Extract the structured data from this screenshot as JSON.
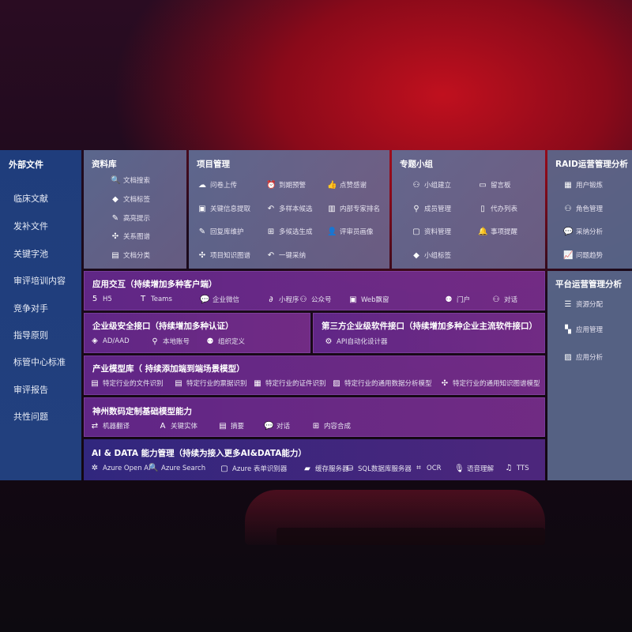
{
  "sidebar": {
    "title": "外部文件",
    "items": [
      "临床文献",
      "发补文件",
      "关键字池",
      "审评培训内容",
      "竞争对手",
      "指导原则",
      "标管中心标准",
      "审评报告",
      "共性问题"
    ]
  },
  "library": {
    "title": "资料库",
    "items": [
      {
        "label": "文档搜索",
        "icon": "doc-search"
      },
      {
        "label": "文档标签",
        "icon": "tag"
      },
      {
        "label": "高亮提示",
        "icon": "pen"
      },
      {
        "label": "关系图谱",
        "icon": "graph"
      },
      {
        "label": "文档分类",
        "icon": "doc-category"
      }
    ]
  },
  "project": {
    "title": "项目管理",
    "items": [
      {
        "label": "问卷上传",
        "icon": "cloud-upload"
      },
      {
        "label": "到期预警",
        "icon": "alarm"
      },
      {
        "label": "点赞感谢",
        "icon": "thumbs-up"
      },
      {
        "label": "关键信息提取",
        "icon": "window"
      },
      {
        "label": "多样本候选",
        "icon": "reply"
      },
      {
        "label": "内部专家排名",
        "icon": "ranking"
      },
      {
        "label": "回复库维护",
        "icon": "pen"
      },
      {
        "label": "多候选生成",
        "icon": "puzzle"
      },
      {
        "label": "评审员画像",
        "icon": "user"
      },
      {
        "label": "项目知识图谱",
        "icon": "graph"
      },
      {
        "label": "一键采纳",
        "icon": "reply"
      }
    ]
  },
  "group": {
    "title": "专题小组",
    "items": [
      {
        "label": "小组建立",
        "icon": "users"
      },
      {
        "label": "留言板",
        "icon": "bbs"
      },
      {
        "label": "成员管理",
        "icon": "user-add"
      },
      {
        "label": "代办列表",
        "icon": "clipboard"
      },
      {
        "label": "资料管理",
        "icon": "folder"
      },
      {
        "label": "事项提醒",
        "icon": "bell"
      },
      {
        "label": "小组标签",
        "icon": "tag"
      }
    ]
  },
  "raid": {
    "title": "RAID运营管理分析",
    "items": [
      {
        "label": "用户锻炼",
        "icon": "id-card"
      },
      {
        "label": "角色管理",
        "icon": "users"
      },
      {
        "label": "采纳分析",
        "icon": "qa"
      },
      {
        "label": "问题趋势",
        "icon": "trend"
      }
    ]
  },
  "platform": {
    "title": "平台运营管理分析",
    "items": [
      {
        "label": "资源分配",
        "icon": "list"
      },
      {
        "label": "应用管理",
        "icon": "apps"
      },
      {
        "label": "应用分析",
        "icon": "chart"
      }
    ]
  },
  "interaction": {
    "title": "应用交互（持续增加多种客户端）",
    "items": [
      {
        "label": "H5",
        "icon": "html5"
      },
      {
        "label": "Teams",
        "icon": "teams"
      },
      {
        "label": "企业微信",
        "icon": "wechat"
      },
      {
        "label": "小程序",
        "icon": "miniprogram"
      },
      {
        "label": "公众号",
        "icon": "users"
      },
      {
        "label": "Web飘窗",
        "icon": "window"
      },
      {
        "label": "门户",
        "icon": "portal"
      },
      {
        "label": "对话",
        "icon": "chat-users"
      }
    ]
  },
  "security": {
    "title": "企业级安全接口（持续增加多种认证）",
    "items": [
      {
        "label": "AD/AAD",
        "icon": "diamond"
      },
      {
        "label": "本地账号",
        "icon": "user-lock"
      },
      {
        "label": "组织定义",
        "icon": "org"
      }
    ]
  },
  "thirdparty": {
    "title": "第三方企业级软件接口（持续增加多种企业主流软件接口）",
    "items": [
      {
        "label": "API自动化设计器",
        "icon": "gear"
      }
    ]
  },
  "industry": {
    "title": "产业模型库（ 持续添加端到端场景模型）",
    "items": [
      {
        "label": "特定行业的文件识别",
        "icon": "doc"
      },
      {
        "label": "特定行业的票据识别",
        "icon": "receipt"
      },
      {
        "label": "特定行业的证件识别",
        "icon": "id-card"
      },
      {
        "label": "特定行业的通用数据分析模型",
        "icon": "chart"
      },
      {
        "label": "特定行业的通用知识图谱模型",
        "icon": "graph"
      }
    ]
  },
  "base": {
    "title": "神州数码定制基础模型能力",
    "items": [
      {
        "label": "机器翻译",
        "icon": "translate"
      },
      {
        "label": "关键实体",
        "icon": "entity"
      },
      {
        "label": "摘要",
        "icon": "doc"
      },
      {
        "label": "对话",
        "icon": "chat"
      },
      {
        "label": "内容合成",
        "icon": "puzzle"
      }
    ]
  },
  "ai": {
    "title": "AI & DATA 能力管理（持续为接入更多AI&DATA能力）",
    "items": [
      {
        "label": "Azure Open AI",
        "icon": "openai"
      },
      {
        "label": "Azure Search",
        "icon": "doc-search"
      },
      {
        "label": "Azure 表单识别器",
        "icon": "form"
      },
      {
        "label": "缓存服务器",
        "icon": "cache"
      },
      {
        "label": "SQL数据库服务器",
        "icon": "database"
      },
      {
        "label": "OCR",
        "icon": "ocr"
      },
      {
        "label": "语音理解",
        "icon": "voice"
      },
      {
        "label": "TTS",
        "icon": "tts"
      }
    ]
  }
}
